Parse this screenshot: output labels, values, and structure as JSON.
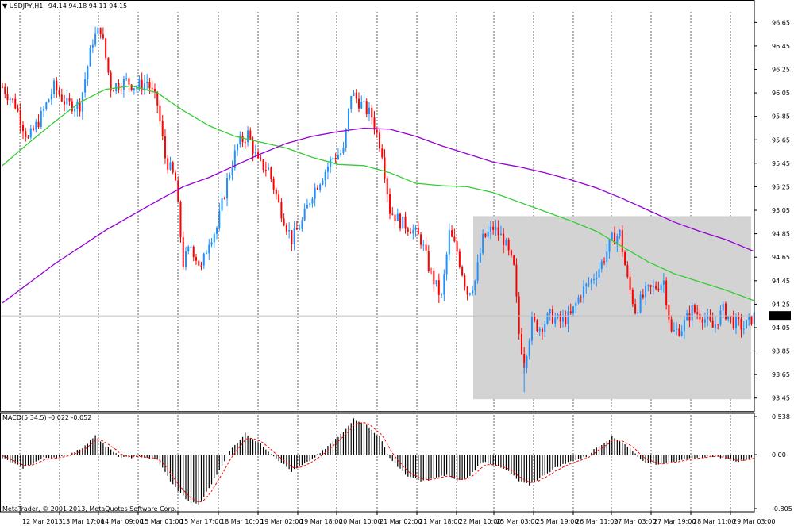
{
  "window": {
    "symbol_title": "USDJPY,H1",
    "ohlc": "94.14 94.18 94.11 94.15",
    "copyright": "MetaTrader, © 2001-2013, MetaQuotes Software Corp."
  },
  "colors": {
    "background": "#ffffff",
    "frame": "#000000",
    "grid": "#000000",
    "bull_candle": "#1e90ff",
    "bear_candle": "#ff0000",
    "ma_fast": "#32cd32",
    "ma_slow": "#9400d3",
    "highlight_zone": "#d3d3d3",
    "macd_hist": "#000000",
    "macd_signal": "#ff0000",
    "price_tag_bg": "#000000",
    "price_tag_fg": "#ffffff"
  },
  "chart_data": [
    {
      "type": "candlestick",
      "symbol": "USDJPY",
      "timeframe": "H1",
      "ylim": [
        93.34,
        96.74
      ],
      "y_ticks": [
        "96.65",
        "96.45",
        "96.25",
        "96.05",
        "95.85",
        "95.65",
        "95.45",
        "95.25",
        "95.05",
        "94.85",
        "94.65",
        "94.45",
        "94.25",
        "94.05",
        "93.85",
        "93.65",
        "93.45"
      ],
      "x_ticks": [
        "12 Mar 2013",
        "13 Mar 17:00",
        "14 Mar 09:00",
        "15 Mar 01:00",
        "15 Mar 17:00",
        "18 Mar 10:00",
        "19 Mar 02:00",
        "19 Mar 18:00",
        "20 Mar 10:00",
        "21 Mar 02:00",
        "21 Mar 18:00",
        "22 Mar 10:00",
        "25 Mar 03:00",
        "25 Mar 19:00",
        "26 Mar 11:00",
        "27 Mar 03:00",
        "27 Mar 19:00",
        "28 Mar 11:00",
        "29 Mar 03:00"
      ],
      "current_price": "94.15",
      "grid": "vertical dotted",
      "highlighted_zone": {
        "from": "22 Mar 16:00",
        "to": "end",
        "price_low": 93.44,
        "price_high": 95.0
      },
      "price_path": [
        [
          0,
          96.1
        ],
        [
          5,
          95.95
        ],
        [
          10,
          95.65
        ],
        [
          15,
          95.85
        ],
        [
          20,
          96.1
        ],
        [
          25,
          95.95
        ],
        [
          30,
          95.95
        ],
        [
          35,
          96.5
        ],
        [
          38,
          96.6
        ],
        [
          42,
          96.1
        ],
        [
          48,
          96.15
        ],
        [
          52,
          96.1
        ],
        [
          56,
          96.15
        ],
        [
          60,
          95.95
        ],
        [
          63,
          95.5
        ],
        [
          67,
          95.3
        ],
        [
          70,
          94.6
        ],
        [
          73,
          94.75
        ],
        [
          77,
          94.55
        ],
        [
          80,
          94.8
        ],
        [
          83,
          94.9
        ],
        [
          87,
          95.3
        ],
        [
          91,
          95.6
        ],
        [
          95,
          95.7
        ],
        [
          99,
          95.45
        ],
        [
          103,
          95.4
        ],
        [
          107,
          95.1
        ],
        [
          112,
          94.8
        ],
        [
          116,
          94.95
        ],
        [
          120,
          95.2
        ],
        [
          124,
          95.35
        ],
        [
          128,
          95.5
        ],
        [
          132,
          95.55
        ],
        [
          135,
          96.05
        ],
        [
          139,
          95.95
        ],
        [
          143,
          95.85
        ],
        [
          147,
          95.55
        ],
        [
          150,
          95.05
        ],
        [
          154,
          94.95
        ],
        [
          158,
          94.9
        ],
        [
          162,
          94.8
        ],
        [
          166,
          94.5
        ],
        [
          170,
          94.3
        ],
        [
          173,
          94.85
        ],
        [
          176,
          94.7
        ],
        [
          180,
          94.35
        ],
        [
          183,
          94.45
        ],
        [
          186,
          94.8
        ],
        [
          190,
          94.9
        ],
        [
          194,
          94.8
        ],
        [
          198,
          94.55
        ],
        [
          200,
          94.0
        ],
        [
          202,
          93.75
        ],
        [
          205,
          94.1
        ],
        [
          208,
          94.05
        ],
        [
          212,
          94.15
        ],
        [
          216,
          94.1
        ],
        [
          220,
          94.15
        ],
        [
          224,
          94.35
        ],
        [
          228,
          94.45
        ],
        [
          232,
          94.6
        ],
        [
          236,
          94.8
        ],
        [
          239,
          94.85
        ],
        [
          242,
          94.45
        ],
        [
          245,
          94.2
        ],
        [
          249,
          94.35
        ],
        [
          253,
          94.4
        ],
        [
          256,
          94.45
        ],
        [
          259,
          94.0
        ],
        [
          263,
          94.05
        ],
        [
          267,
          94.2
        ],
        [
          271,
          94.15
        ],
        [
          275,
          94.05
        ],
        [
          279,
          94.2
        ],
        [
          283,
          94.1
        ],
        [
          287,
          94.05
        ],
        [
          291,
          94.15
        ]
      ],
      "series": [
        {
          "name": "",
          "kind": "moving_average_fast",
          "color": "#32cd32",
          "points": [
            [
              0,
              95.43
            ],
            [
              10,
              95.62
            ],
            [
              20,
              95.8
            ],
            [
              30,
              95.97
            ],
            [
              40,
              96.08
            ],
            [
              50,
              96.11
            ],
            [
              60,
              96.05
            ],
            [
              70,
              95.9
            ],
            [
              80,
              95.77
            ],
            [
              90,
              95.68
            ],
            [
              100,
              95.63
            ],
            [
              110,
              95.58
            ],
            [
              120,
              95.5
            ],
            [
              130,
              95.44
            ],
            [
              140,
              95.43
            ],
            [
              150,
              95.37
            ],
            [
              160,
              95.28
            ],
            [
              170,
              95.26
            ],
            [
              180,
              95.25
            ],
            [
              190,
              95.2
            ],
            [
              200,
              95.12
            ],
            [
              210,
              95.04
            ],
            [
              220,
              94.96
            ],
            [
              230,
              94.87
            ],
            [
              240,
              94.74
            ],
            [
              250,
              94.61
            ],
            [
              260,
              94.51
            ],
            [
              270,
              94.44
            ],
            [
              280,
              94.37
            ],
            [
              291,
              94.28
            ]
          ]
        },
        {
          "name": "",
          "kind": "moving_average_slow",
          "color": "#9400d3",
          "points": [
            [
              0,
              94.26
            ],
            [
              20,
              94.59
            ],
            [
              40,
              94.88
            ],
            [
              60,
              95.13
            ],
            [
              70,
              95.25
            ],
            [
              80,
              95.33
            ],
            [
              90,
              95.43
            ],
            [
              100,
              95.53
            ],
            [
              110,
              95.62
            ],
            [
              120,
              95.68
            ],
            [
              130,
              95.72
            ],
            [
              140,
              95.75
            ],
            [
              150,
              95.74
            ],
            [
              160,
              95.68
            ],
            [
              170,
              95.6
            ],
            [
              180,
              95.53
            ],
            [
              190,
              95.46
            ],
            [
              200,
              95.42
            ],
            [
              210,
              95.37
            ],
            [
              220,
              95.31
            ],
            [
              230,
              95.24
            ],
            [
              240,
              95.15
            ],
            [
              250,
              95.05
            ],
            [
              260,
              94.95
            ],
            [
              270,
              94.87
            ],
            [
              280,
              94.8
            ],
            [
              291,
              94.7
            ]
          ]
        }
      ]
    },
    {
      "type": "bar",
      "indicator": "MACD(5,34,5) -0.022 -0.052",
      "ylim": [
        -0.805,
        0.538
      ],
      "y_ticks": [
        "0.538",
        "0.00",
        "-0.805"
      ],
      "histogram_path": [
        [
          0,
          -0.05
        ],
        [
          8,
          -0.2
        ],
        [
          16,
          -0.05
        ],
        [
          24,
          -0.03
        ],
        [
          32,
          0.12
        ],
        [
          36,
          0.28
        ],
        [
          40,
          0.12
        ],
        [
          46,
          -0.05
        ],
        [
          54,
          -0.03
        ],
        [
          60,
          -0.08
        ],
        [
          66,
          -0.45
        ],
        [
          72,
          -0.7
        ],
        [
          76,
          -0.75
        ],
        [
          80,
          -0.5
        ],
        [
          88,
          0.05
        ],
        [
          94,
          0.3
        ],
        [
          100,
          0.15
        ],
        [
          106,
          -0.05
        ],
        [
          112,
          -0.25
        ],
        [
          118,
          -0.12
        ],
        [
          124,
          0.05
        ],
        [
          130,
          0.25
        ],
        [
          136,
          0.5
        ],
        [
          140,
          0.45
        ],
        [
          146,
          0.25
        ],
        [
          150,
          -0.05
        ],
        [
          156,
          -0.3
        ],
        [
          162,
          -0.4
        ],
        [
          168,
          -0.35
        ],
        [
          172,
          -0.3
        ],
        [
          176,
          -0.4
        ],
        [
          180,
          -0.35
        ],
        [
          186,
          -0.1
        ],
        [
          190,
          -0.15
        ],
        [
          196,
          -0.25
        ],
        [
          200,
          -0.4
        ],
        [
          204,
          -0.45
        ],
        [
          208,
          -0.35
        ],
        [
          214,
          -0.2
        ],
        [
          220,
          -0.1
        ],
        [
          226,
          -0.03
        ],
        [
          230,
          0.1
        ],
        [
          236,
          0.25
        ],
        [
          240,
          0.18
        ],
        [
          244,
          0.05
        ],
        [
          248,
          -0.1
        ],
        [
          254,
          -0.15
        ],
        [
          258,
          -0.1
        ],
        [
          262,
          -0.1
        ],
        [
          268,
          -0.05
        ],
        [
          274,
          -0.02
        ],
        [
          280,
          -0.05
        ],
        [
          285,
          -0.1
        ],
        [
          291,
          -0.03
        ]
      ],
      "signal_line_color": "#ff0000"
    }
  ]
}
